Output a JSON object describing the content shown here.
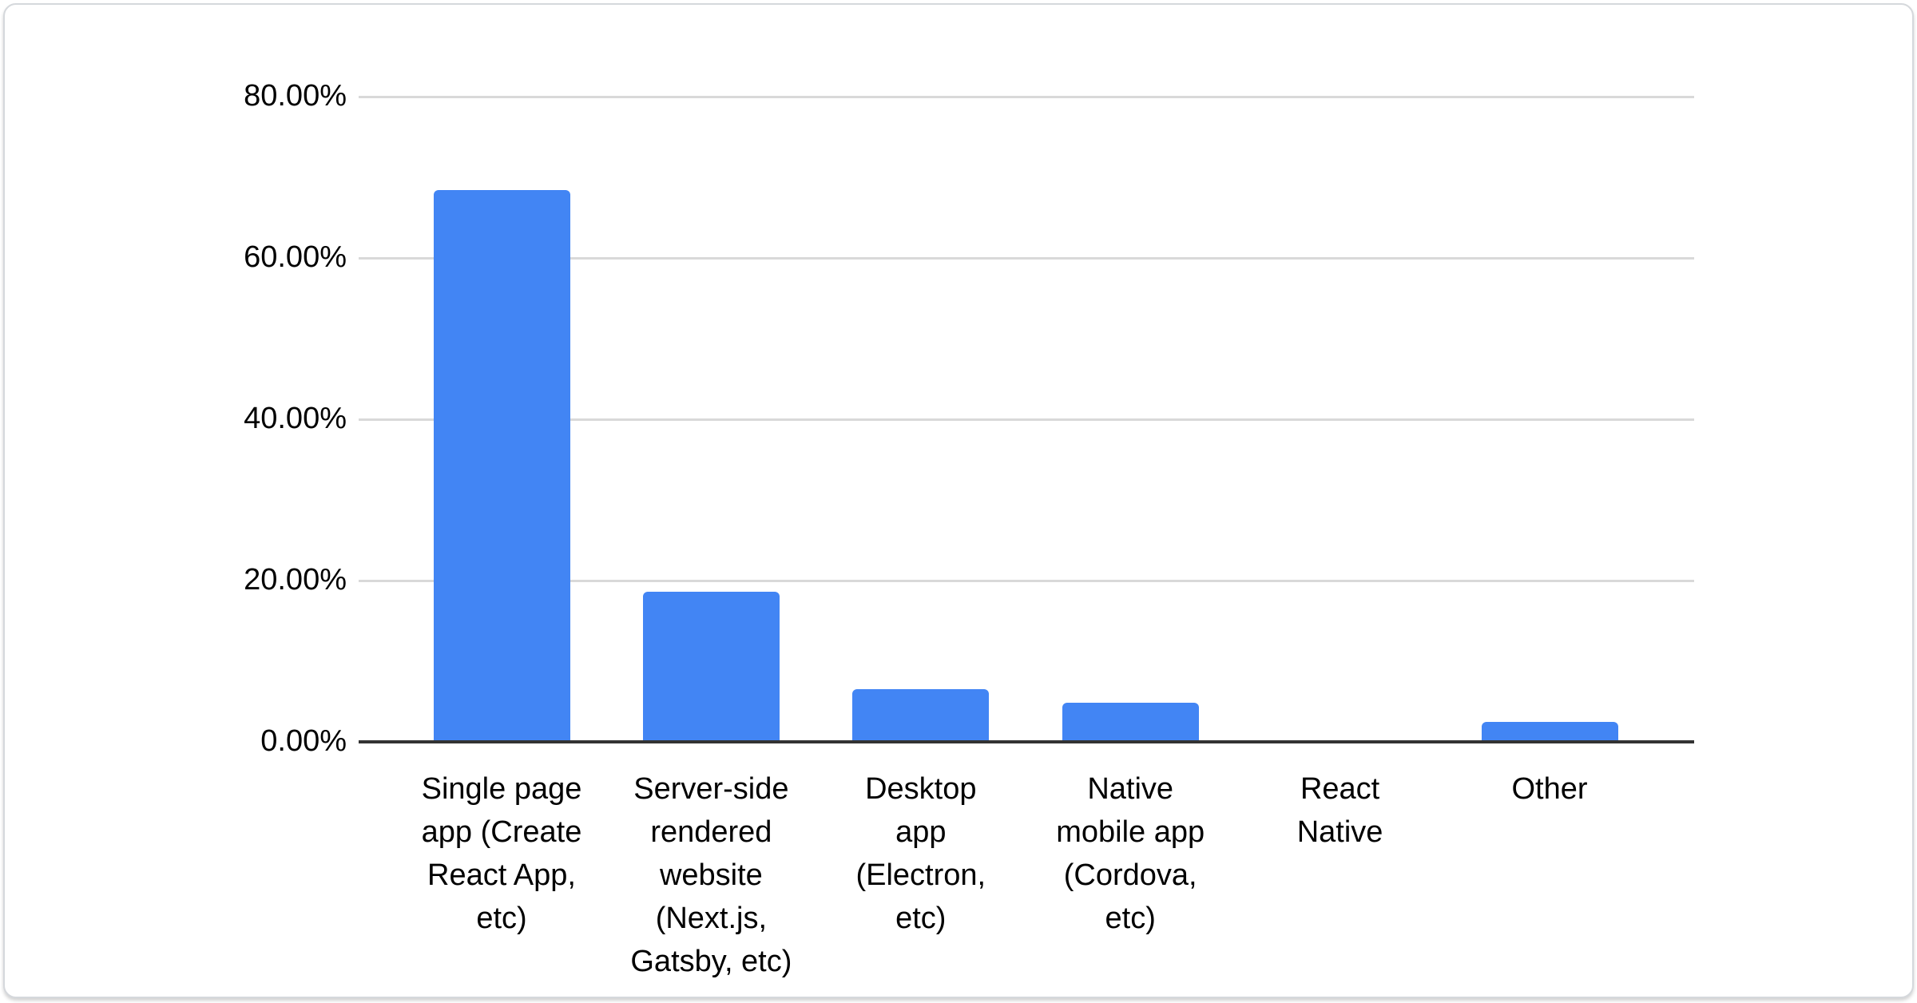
{
  "window": {
    "title": ""
  },
  "colors": {
    "bar": "#4285f4",
    "gridline": "#d9d9d9",
    "axis": "#333333",
    "label_text": "#000000",
    "card_border": "#d5d8dc",
    "card_background": "#ffffff"
  },
  "chart_data": {
    "type": "bar",
    "title": "",
    "xlabel": "",
    "ylabel": "",
    "categories": [
      "Single page app (Create React App, etc)",
      "Server-side rendered website (Next.js, Gatsby, etc)",
      "Desktop app (Electron, etc)",
      "Native mobile app (Cordova, etc)",
      "React Native",
      "Other"
    ],
    "category_lines": [
      [
        "Single page",
        "app (Create",
        "React App,",
        "etc)"
      ],
      [
        "Server-side",
        "rendered",
        "website",
        "(Next.js,",
        "Gatsby, etc)"
      ],
      [
        "Desktop",
        "app",
        "(Electron,",
        "etc)"
      ],
      [
        "Native",
        "mobile app",
        "(Cordova,",
        "etc)"
      ],
      [
        "React",
        "Native"
      ],
      [
        "Other"
      ]
    ],
    "values": [
      68.2,
      18.4,
      6.3,
      4.7,
      0,
      2.3
    ],
    "value_unit": "%",
    "ylim": [
      0,
      80
    ],
    "yticks": [
      0,
      20,
      40,
      60,
      80
    ],
    "ytick_labels": [
      "0.00%",
      "20.00%",
      "40.00%",
      "60.00%",
      "80.00%"
    ],
    "grid": "horizontal-only",
    "legend": "none",
    "bar_color": "#4285f4"
  }
}
